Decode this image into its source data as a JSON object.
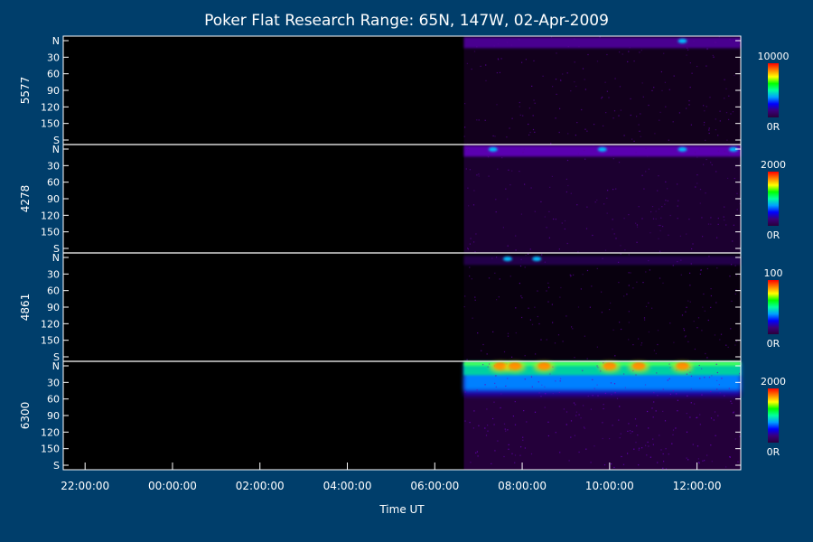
{
  "chart_data": {
    "type": "heatmap",
    "title": "Poker Flat Research Range: 65N, 147W, 02-Apr-2009",
    "xlabel": "Time UT",
    "x_ticks": [
      "22:00:00",
      "00:00:00",
      "02:00:00",
      "04:00:00",
      "06:00:00",
      "08:00:00",
      "10:00:00",
      "12:00:00"
    ],
    "x_range": [
      "21:30:00",
      "13:00:00"
    ],
    "data_start": "06:40:00",
    "y_ticks": [
      "N",
      "30",
      "60",
      "90",
      "120",
      "150",
      "S"
    ],
    "y_range": [
      0,
      180
    ],
    "panels": [
      {
        "ylabel": "5577",
        "colorbar_max": "10000",
        "colorbar_min": "0R",
        "intensity_band": "weak emission near N edge (≈10–20)",
        "peaks_at": [
          "11:40:00"
        ]
      },
      {
        "ylabel": "4278",
        "colorbar_max": "2000",
        "colorbar_min": "0R",
        "intensity_band": "moderate emission near N edge (≈5–20)",
        "peaks_at": [
          "07:20:00",
          "09:50:00",
          "11:40:00",
          "12:50:00"
        ]
      },
      {
        "ylabel": "4861",
        "colorbar_max": "100",
        "colorbar_min": "0R",
        "intensity_band": "faint speckled emission (≈5–15)",
        "peaks_at": [
          "07:40:00",
          "08:20:00"
        ]
      },
      {
        "ylabel": "6300",
        "colorbar_max": "2000",
        "colorbar_min": "0R",
        "intensity_band": "strong emission band (≈0–35)",
        "peaks_at": [
          "07:30:00",
          "07:50:00",
          "08:30:00",
          "10:00:00",
          "10:40:00",
          "11:40:00"
        ]
      }
    ]
  },
  "colors": {
    "background": "#003e6b",
    "plot_background": "#000000",
    "text": "#ffffff",
    "colorbar_stops": [
      "#2a003a",
      "#3a007a",
      "#0000ff",
      "#00a0ff",
      "#00ffa0",
      "#00ff00",
      "#ffff00",
      "#ff8000",
      "#ff0000"
    ]
  }
}
